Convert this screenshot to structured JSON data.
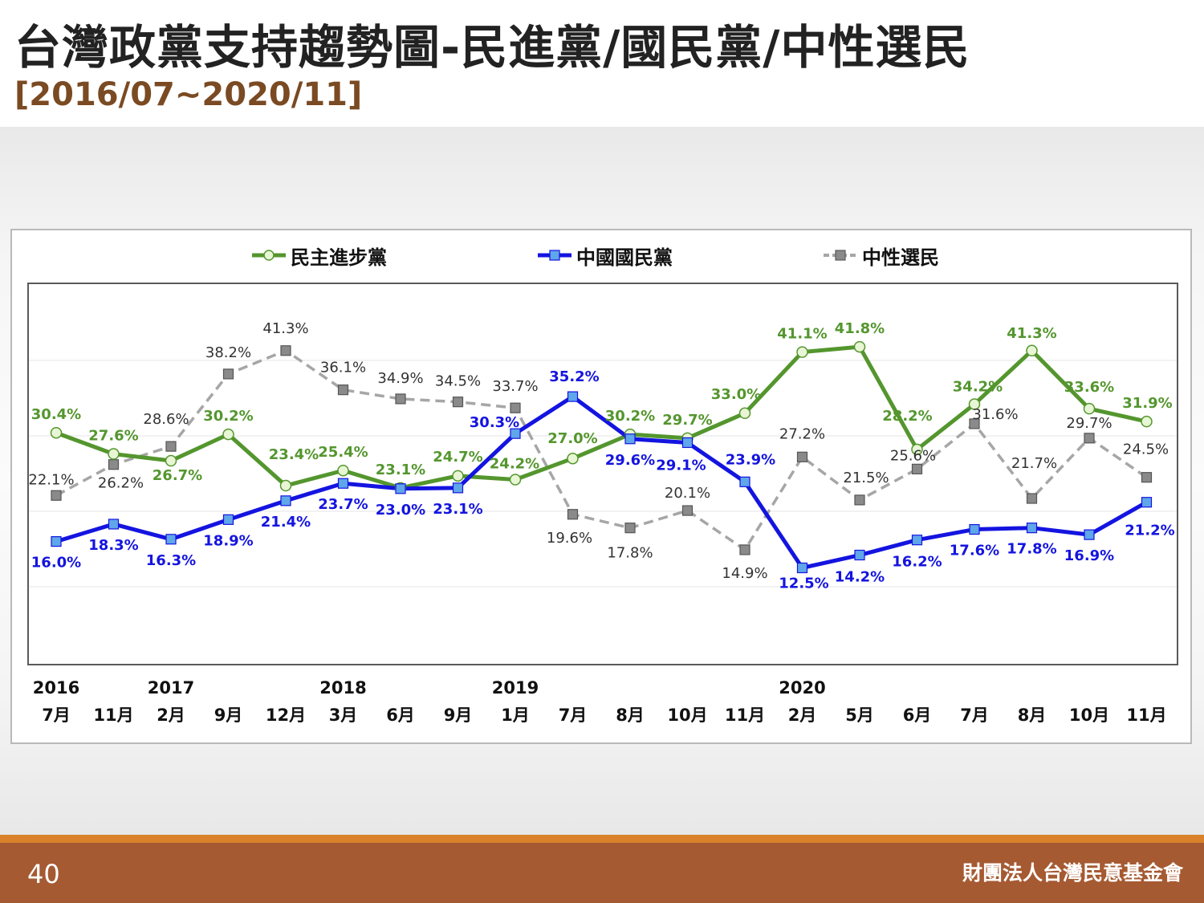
{
  "slide": {
    "title": "台灣政黨支持趨勢圖-民進黨/國民黨/中性選民",
    "subtitle": "[2016/07~2020/11]",
    "page_number": "40",
    "organization": "財團法人台灣民意基金會"
  },
  "legend": {
    "items": [
      {
        "label": "民主進步黨",
        "color": "#54962e"
      },
      {
        "label": "中國國民黨",
        "color": "#1414e0"
      },
      {
        "label": "中性選民",
        "color": "#a6a6a6"
      }
    ]
  },
  "chart_data": {
    "type": "line",
    "x_years": [
      "2016",
      "",
      "2017",
      "",
      "",
      "2018",
      "",
      "",
      "2019",
      "",
      "",
      "",
      "",
      "2020",
      "",
      "",
      "",
      "",
      "",
      ""
    ],
    "x_months": [
      "7月",
      "11月",
      "2月",
      "9月",
      "12月",
      "3月",
      "6月",
      "9月",
      "1月",
      "7月",
      "8月",
      "10月",
      "11月",
      "2月",
      "5月",
      "6月",
      "7月",
      "8月",
      "10月",
      "11月"
    ],
    "series": [
      {
        "name": "民主進步黨",
        "color": "#54962e",
        "values": [
          30.4,
          27.6,
          26.7,
          30.2,
          23.4,
          25.4,
          23.1,
          24.7,
          24.2,
          27.0,
          30.2,
          29.7,
          33.0,
          41.1,
          41.8,
          28.2,
          34.2,
          41.3,
          33.6,
          31.9
        ],
        "labels": [
          "30.4%",
          "27.6%",
          "26.7%",
          "30.2%",
          "23.4%",
          "25.4%",
          "23.1%",
          "24.7%",
          "24.2%",
          "27.0%",
          "30.2%",
          "29.7%",
          "33.0%",
          "41.1%",
          "41.8%",
          "28.2%",
          "34.2%",
          "41.3%",
          "33.6%",
          "31.9%"
        ]
      },
      {
        "name": "中國國民黨",
        "color": "#1414e0",
        "values": [
          16.0,
          18.3,
          16.3,
          18.9,
          21.4,
          23.7,
          23.0,
          23.1,
          30.3,
          35.2,
          29.6,
          29.1,
          23.9,
          12.5,
          14.2,
          16.2,
          17.6,
          17.8,
          16.9,
          21.2
        ],
        "labels": [
          "16.0%",
          "18.3%",
          "16.3%",
          "18.9%",
          "21.4%",
          "23.7%",
          "23.0%",
          "23.1%",
          "30.3%",
          "35.2%",
          "29.6%",
          "29.1%",
          "23.9%",
          "12.5%",
          "14.2%",
          "16.2%",
          "17.6%",
          "17.8%",
          "16.9%",
          "21.2%"
        ]
      },
      {
        "name": "中性選民",
        "color": "#a6a6a6",
        "values": [
          22.1,
          26.2,
          28.6,
          38.2,
          41.3,
          36.1,
          34.9,
          34.5,
          33.7,
          19.6,
          17.8,
          20.1,
          14.9,
          27.2,
          21.5,
          25.6,
          31.6,
          21.7,
          29.7,
          24.5
        ],
        "labels": [
          "22.1%",
          "26.2%",
          "28.6%",
          "38.2%",
          "41.3%",
          "36.1%",
          "34.9%",
          "34.5%",
          "33.7%",
          "19.6%",
          "17.8%",
          "20.1%",
          "14.9%",
          "27.2%",
          "21.5%",
          "25.6%",
          "31.6%",
          "21.7%",
          "29.7%",
          "24.5%"
        ]
      }
    ],
    "grid": true,
    "legend_position": "top"
  }
}
